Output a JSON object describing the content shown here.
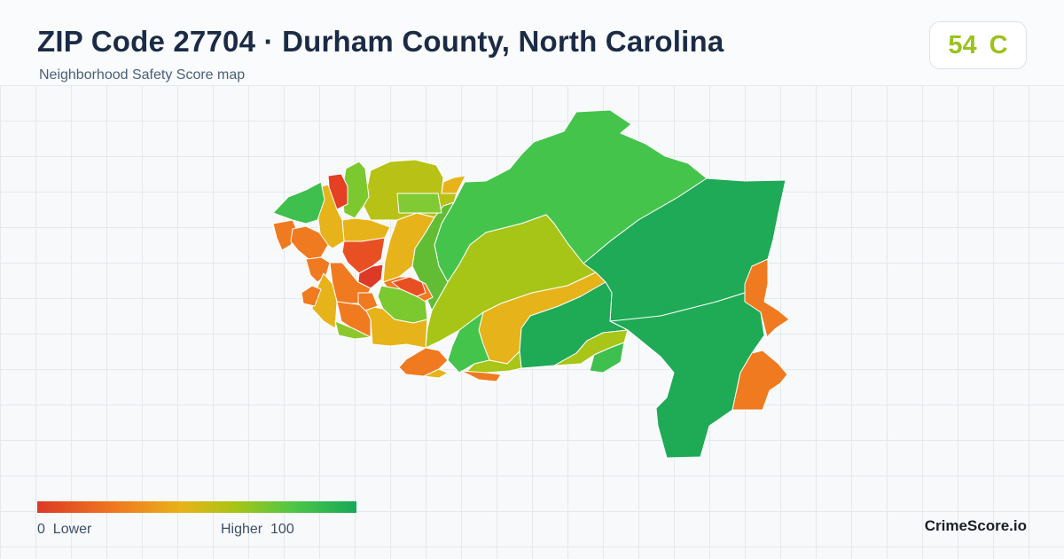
{
  "header": {
    "title": "ZIP Code 27704 · Durham County, North Carolina",
    "subtitle": "Neighborhood Safety Score map"
  },
  "score": {
    "value": "54",
    "grade": "C",
    "color": "#9bc21d"
  },
  "legend": {
    "min_label": "0  Lower",
    "max_label": "Higher  100",
    "colors": [
      "#dc3a26",
      "#f07a20",
      "#e9b21a",
      "#a8c515",
      "#4ec648",
      "#17a859"
    ]
  },
  "brand": "CrimeScore.io"
}
